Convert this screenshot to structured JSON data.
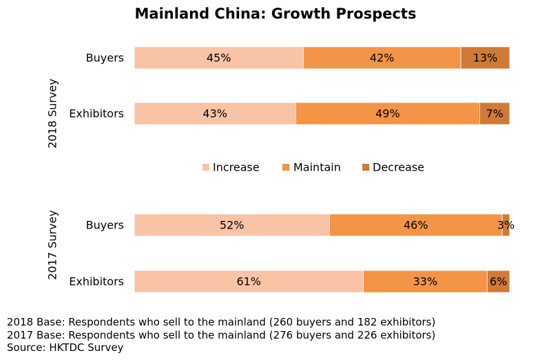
{
  "chart_data": {
    "type": "bar",
    "orientation": "horizontal",
    "stacked": true,
    "percent": true,
    "title": "Mainland China: Growth Prospects",
    "legend": {
      "placement": "center",
      "entries": [
        "Increase",
        "Maintain",
        "Decrease"
      ]
    },
    "series": [
      {
        "name": "Increase",
        "color": "#F9C3A6"
      },
      {
        "name": "Maintain",
        "color": "#F49447"
      },
      {
        "name": "Decrease",
        "color": "#CF7A37"
      }
    ],
    "groups": [
      {
        "label": "2018 Survey",
        "categories": [
          "Buyers",
          "Exhibitors"
        ],
        "values": [
          [
            45,
            42,
            13
          ],
          [
            43,
            49,
            7
          ]
        ],
        "labels": [
          [
            "45%",
            "42%",
            "13%"
          ],
          [
            "43%",
            "49%",
            "7%"
          ]
        ]
      },
      {
        "label": "2017 Survey",
        "categories": [
          "Buyers",
          "Exhibitors"
        ],
        "values": [
          [
            52,
            46,
            3
          ],
          [
            61,
            33,
            6
          ]
        ],
        "labels": [
          [
            "52%",
            "46%",
            "3%"
          ],
          [
            "61%",
            "33%",
            "6%"
          ]
        ]
      }
    ],
    "xlim": [
      0,
      100
    ],
    "grid": false
  },
  "notes": [
    "2018 Base: Respondents who sell to the mainland (260 buyers and 182 exhibitors)",
    "2017 Base: Respondents who sell to the mainland (276 buyers and 226 exhibitors)",
    "Source: HKTDC Survey"
  ]
}
